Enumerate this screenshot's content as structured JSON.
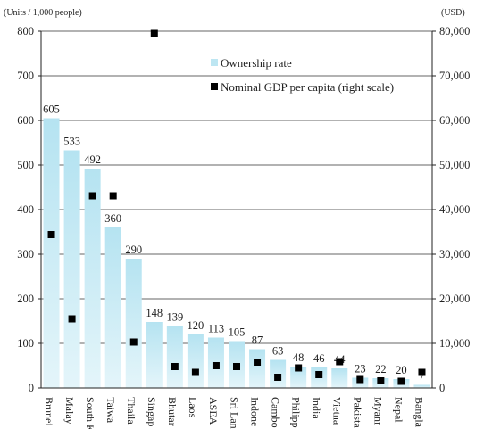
{
  "chart_data": {
    "type": "bar",
    "left_axis_unit": "(Units / 1,000 people)",
    "right_axis_unit": "(USD)",
    "categories": [
      "Brunei",
      "Malaysia",
      "South Korea",
      "Taiwan",
      "Thailand",
      "Singapore",
      "Bhutan",
      "Laos",
      "ASEAN",
      "Sri Lanka",
      "Indonesia",
      "Cambodia",
      "Philippines",
      "India",
      "Vietnam",
      "Pakistan",
      "Myanmar",
      "Nepal",
      "Bangladesh"
    ],
    "category_labels": [
      "Brunei",
      "Malay",
      "South K",
      "Taiwa",
      "Thaila",
      "Singap",
      "Bhutar",
      "Laos",
      "ASEA",
      "Sri Lan",
      "Indone",
      "Cambo",
      "Philipp",
      "India",
      "Vietna",
      "Pakista",
      "Myanr",
      "Nepal",
      "Bangla"
    ],
    "series": [
      {
        "name": "Ownership rate",
        "type": "bar",
        "axis": "left",
        "color": "#bde6f2",
        "values": [
          605,
          533,
          492,
          360,
          290,
          148,
          139,
          120,
          113,
          105,
          87,
          63,
          48,
          46,
          44,
          23,
          22,
          20,
          7
        ],
        "labels": [
          "605",
          "533",
          "492",
          "360",
          "290",
          "148",
          "139",
          "120",
          "113",
          "105",
          "87",
          "63",
          "48",
          "46",
          "44",
          "23",
          "22",
          "20",
          "7"
        ]
      },
      {
        "name": "Nominal GDP per capita (right scale)",
        "type": "scatter",
        "axis": "right",
        "color": "#000000",
        "values": [
          34400,
          15500,
          43100,
          43100,
          10300,
          79500,
          4800,
          3500,
          5000,
          4800,
          5800,
          2400,
          4500,
          3000,
          5900,
          1900,
          1600,
          1500,
          3500
        ]
      }
    ],
    "ylim_left": [
      0,
      800
    ],
    "ylim_right": [
      0,
      80000
    ],
    "yticks_left": [
      "0",
      "100",
      "200",
      "300",
      "400",
      "500",
      "600",
      "700",
      "800"
    ],
    "yticks_right": [
      "0",
      "10,000",
      "20,000",
      "30,000",
      "40,000",
      "50,000",
      "60,000",
      "70,000",
      "80,000"
    ],
    "grid": true,
    "legend_position": "top-right"
  }
}
